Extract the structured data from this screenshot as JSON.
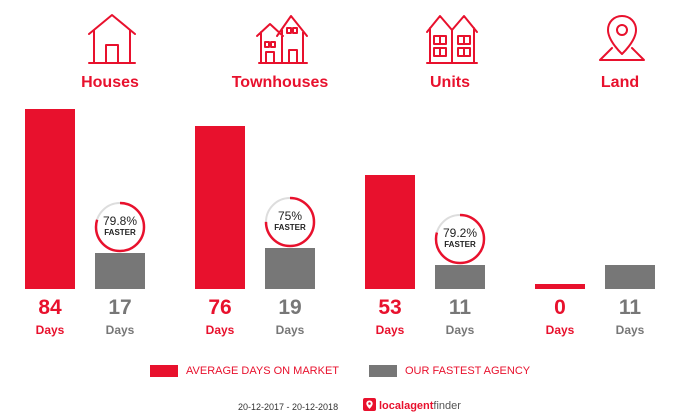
{
  "colors": {
    "red": "#e8112d",
    "gray": "#777777",
    "badge_track": "#dddddd"
  },
  "chart_data": {
    "type": "bar",
    "categories": [
      "Houses",
      "Townhouses",
      "Units",
      "Land"
    ],
    "icons": [
      "house-icon",
      "townhouse-icon",
      "units-icon",
      "land-pin-icon"
    ],
    "series": [
      {
        "name": "AVERAGE DAYS ON MARKET",
        "values": [
          84,
          76,
          53,
          0
        ]
      },
      {
        "name": "OUR FASTEST AGENCY",
        "values": [
          17,
          19,
          11,
          11
        ]
      }
    ],
    "value_unit": "Days",
    "faster": [
      {
        "label": "79.8%",
        "value": 79.8,
        "text": "FASTER"
      },
      {
        "label": "75%",
        "value": 75,
        "text": "FASTER"
      },
      {
        "label": "79.2%",
        "value": 79.2,
        "text": "FASTER"
      },
      null
    ],
    "ylim": [
      0,
      84
    ],
    "legend_position": "bottom"
  },
  "footer": {
    "date_range": "20-12-2017 - 20-12-2018",
    "brand_part1": "local",
    "brand_part2": "agent",
    "brand_part3": "finder"
  }
}
